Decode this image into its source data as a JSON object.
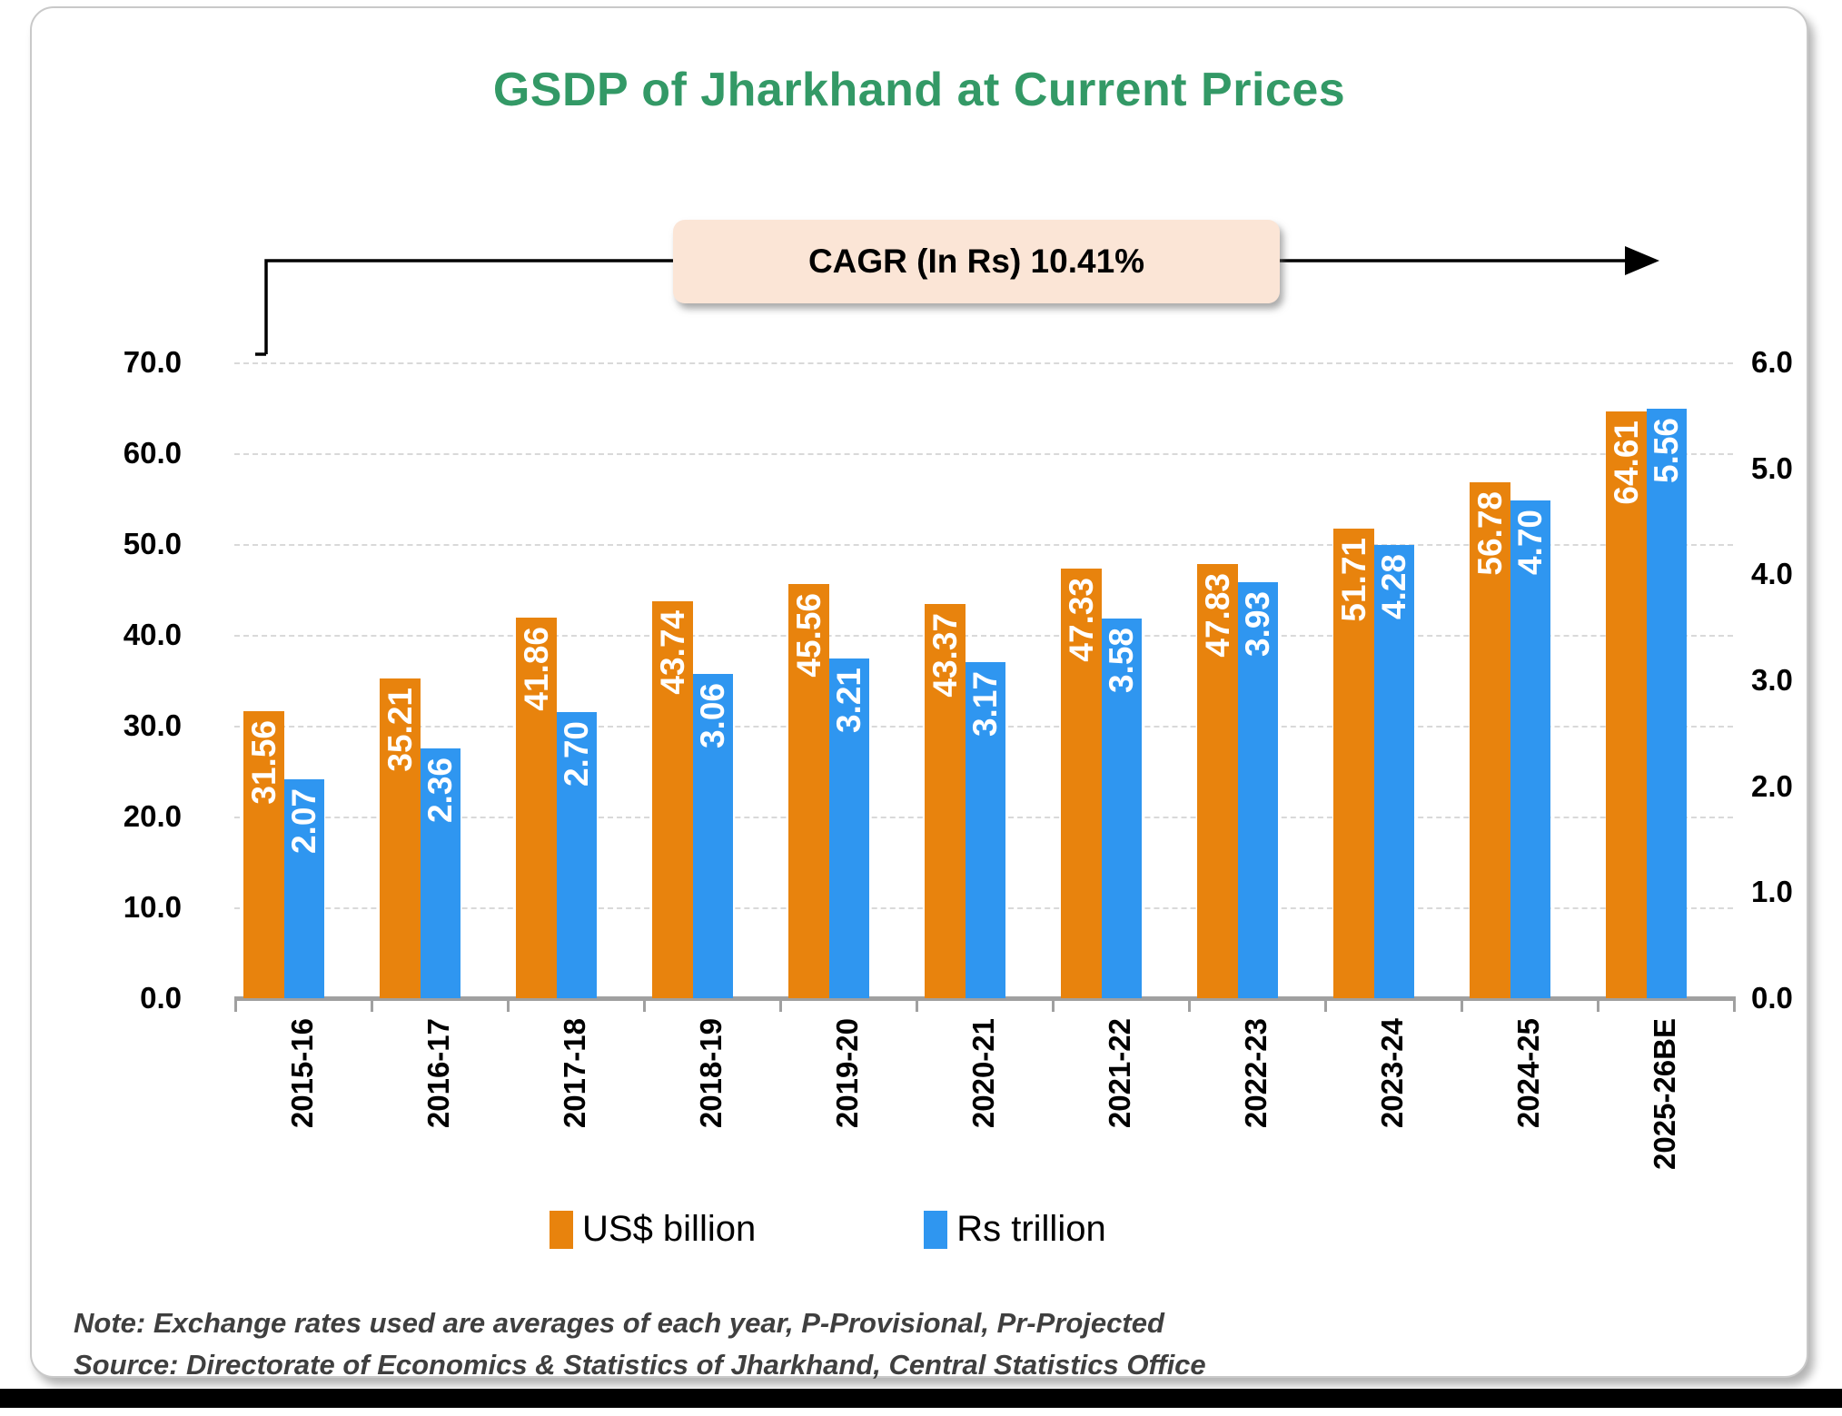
{
  "page": {
    "title": "GSDP of Jharkhand at Current Prices"
  },
  "annotation": {
    "cagr_label": "CAGR (In Rs) 10.41%"
  },
  "chart_data": {
    "type": "bar",
    "title": "GSDP of Jharkhand at Current Prices",
    "categories": [
      "2015-16",
      "2016-17",
      "2017-18",
      "2018-19",
      "2019-20",
      "2020-21",
      "2021-22",
      "2022-23",
      "2023-24",
      "2024-25",
      "2025-26BE"
    ],
    "series": [
      {
        "name": "US$ billion",
        "axis": "left",
        "color": "#e8830d",
        "values": [
          31.56,
          35.21,
          41.86,
          43.74,
          45.56,
          43.37,
          47.33,
          47.83,
          51.71,
          56.78,
          64.61
        ]
      },
      {
        "name": "Rs trillion",
        "axis": "right",
        "color": "#2f96f0",
        "values": [
          2.07,
          2.36,
          2.7,
          3.06,
          3.21,
          3.17,
          3.58,
          3.93,
          4.28,
          4.7,
          5.56
        ]
      }
    ],
    "left_axis": {
      "min": 0,
      "max": 70,
      "step": 10,
      "labels": [
        "0.0",
        "10.0",
        "20.0",
        "30.0",
        "40.0",
        "50.0",
        "60.0",
        "70.0"
      ]
    },
    "right_axis": {
      "min": 0,
      "max": 6,
      "step": 1,
      "labels": [
        "0.0",
        "1.0",
        "2.0",
        "3.0",
        "4.0",
        "5.0",
        "6.0"
      ]
    },
    "grid": "horizontal-dashed",
    "legend_position": "bottom",
    "annotation": "CAGR (In Rs) 10.41%"
  },
  "legend": {
    "items": [
      {
        "label": "US$ billion",
        "color": "#e8830d"
      },
      {
        "label": "Rs trillion",
        "color": "#2f96f0"
      }
    ]
  },
  "footer": {
    "note": "Note: Exchange rates used are averages of each year, P-Provisional, Pr-Projected",
    "source": "Source: Directorate of Economics & Statistics of Jharkhand, Central Statistics Office"
  },
  "colors": {
    "title_green": "#339966",
    "bar_orange": "#e8830d",
    "bar_blue": "#2f96f0",
    "cagr_box_fill": "#fbe5d6",
    "gridline": "#d9d9d9",
    "axis_line": "#a0a0a0",
    "note_text": "#3f3f3f"
  }
}
